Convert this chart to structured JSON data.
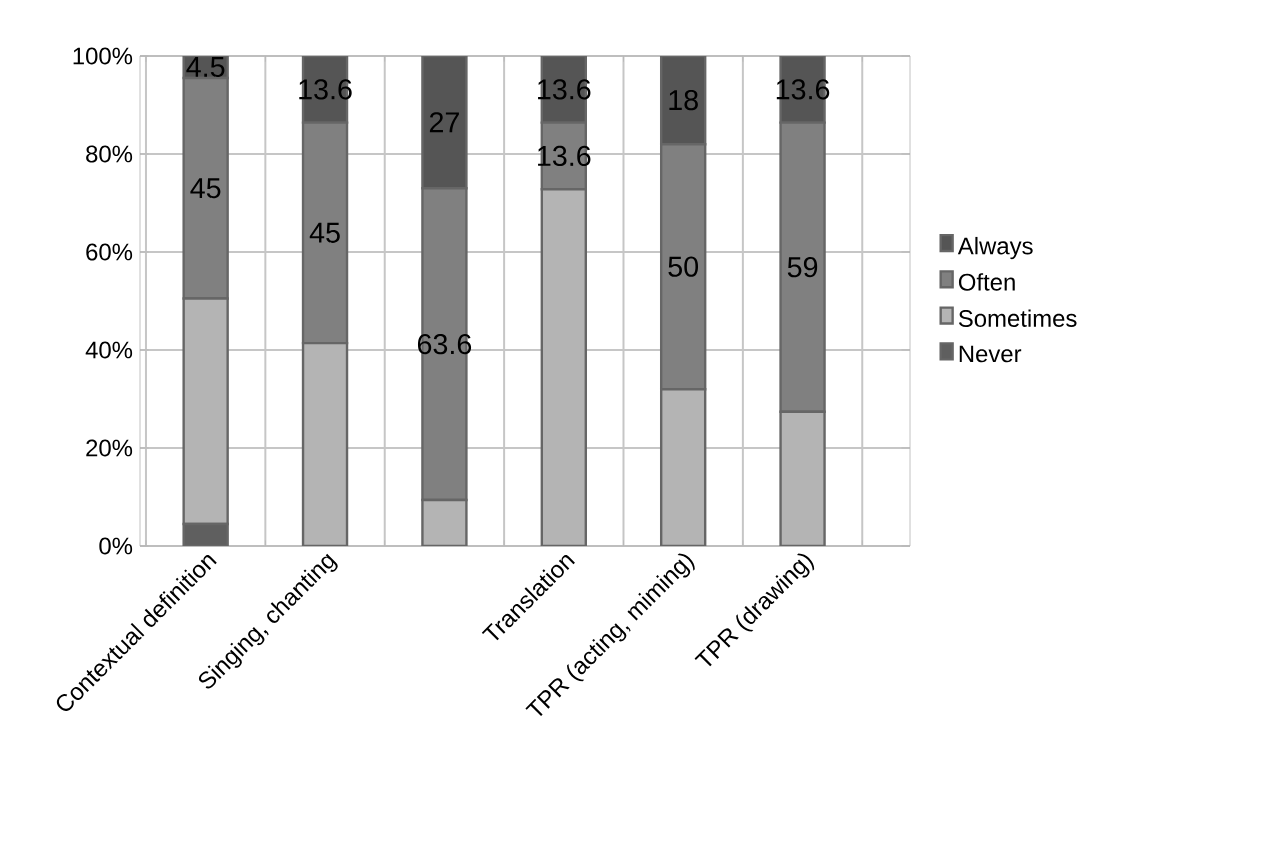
{
  "chart_data": {
    "type": "bar",
    "stacked": true,
    "categories": [
      "Contextual definition",
      "Singing, chanting",
      null,
      "Translation",
      "TPR (acting, miming)",
      "TPR (drawing)"
    ],
    "series": [
      {
        "name": "Never",
        "color": "#5f5f5f",
        "values": [
          4.5,
          0,
          0,
          0,
          0,
          0
        ]
      },
      {
        "name": "Sometimes",
        "color": "#b4b4b4",
        "values": [
          46,
          41.4,
          9.4,
          72.8,
          32,
          27.4
        ]
      },
      {
        "name": "Often",
        "color": "#808080",
        "values": [
          45,
          45,
          63.6,
          13.6,
          50,
          59
        ],
        "value_labels": [
          "45",
          "45",
          "63.6",
          "13.6",
          "50",
          "59"
        ]
      },
      {
        "name": "Always",
        "color": "#555555",
        "values": [
          4.5,
          13.6,
          27,
          13.6,
          18,
          13.6
        ],
        "value_labels": [
          "4.5",
          "13.6",
          "27",
          "13.6",
          "18",
          "13.6"
        ]
      }
    ],
    "ylim": [
      0,
      100
    ],
    "yticks": [
      {
        "value": 0,
        "label": "0%"
      },
      {
        "value": 20,
        "label": "20%"
      },
      {
        "value": 40,
        "label": "40%"
      },
      {
        "value": 60,
        "label": "60%"
      },
      {
        "value": 80,
        "label": "80%"
      },
      {
        "value": 100,
        "label": "100%"
      }
    ],
    "grid": true,
    "legend": "right"
  }
}
